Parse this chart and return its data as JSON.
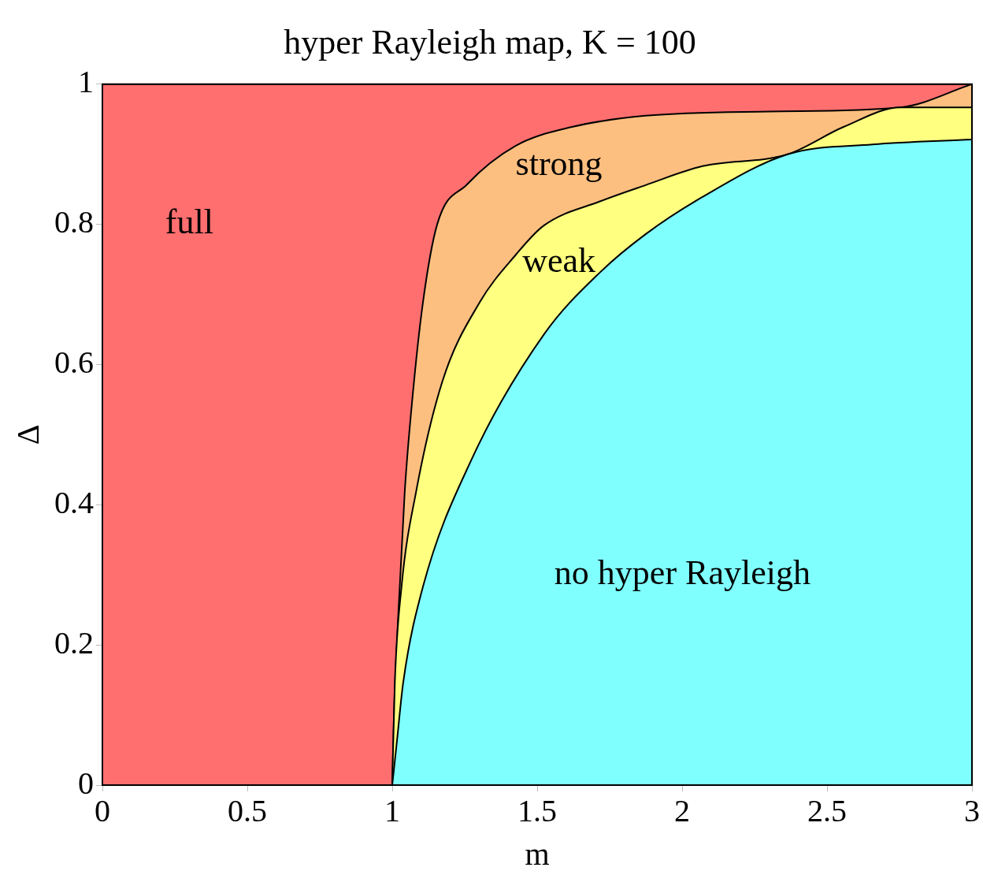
{
  "chart_data": {
    "type": "area",
    "title": "hyper Rayleigh map, K = 100",
    "xlabel": "m",
    "ylabel": "Δ",
    "xlim": [
      0,
      3
    ],
    "xticks": [
      0,
      0.5,
      1,
      1.5,
      2,
      2.5,
      3
    ],
    "ylim": [
      0,
      1
    ],
    "yticks": [
      0,
      0.2,
      0.4,
      0.6,
      0.8,
      1
    ],
    "legend": false,
    "series": [
      {
        "name": "full",
        "color": "#ff6f6f",
        "x": [
          0,
          3
        ],
        "values": [
          1,
          1
        ]
      },
      {
        "name": "strong",
        "color": "#fdbf80",
        "x": [
          1,
          1.006,
          1.02,
          1.043,
          1.07,
          1.106,
          1.155,
          1.258,
          1.425,
          1.62,
          1.874,
          2.3,
          2.754,
          3
        ],
        "values": [
          0,
          0.102,
          0.237,
          0.418,
          0.554,
          0.689,
          0.8,
          0.857,
          0.912,
          0.939,
          0.955,
          0.961,
          0.967,
          1
        ]
      },
      {
        "name": "weak",
        "color": "#ffff80",
        "x": [
          1,
          1.009,
          1.032,
          1.082,
          1.173,
          1.302,
          1.425,
          1.522,
          1.718,
          1.874,
          2.07,
          2.364,
          2.557,
          2.754,
          3
        ],
        "values": [
          0,
          0.147,
          0.283,
          0.418,
          0.576,
          0.689,
          0.756,
          0.798,
          0.833,
          0.856,
          0.883,
          0.9,
          0.939,
          0.967,
          0.967
        ]
      },
      {
        "name": "no hyper Rayleigh",
        "color": "#80ffff",
        "x": [
          1,
          1.015,
          1.038,
          1.106,
          1.273,
          1.525,
          1.718,
          1.874,
          2.07,
          2.364,
          2.657,
          3
        ],
        "values": [
          0,
          0.058,
          0.147,
          0.283,
          0.464,
          0.644,
          0.732,
          0.786,
          0.839,
          0.9,
          0.914,
          0.921
        ]
      }
    ]
  }
}
